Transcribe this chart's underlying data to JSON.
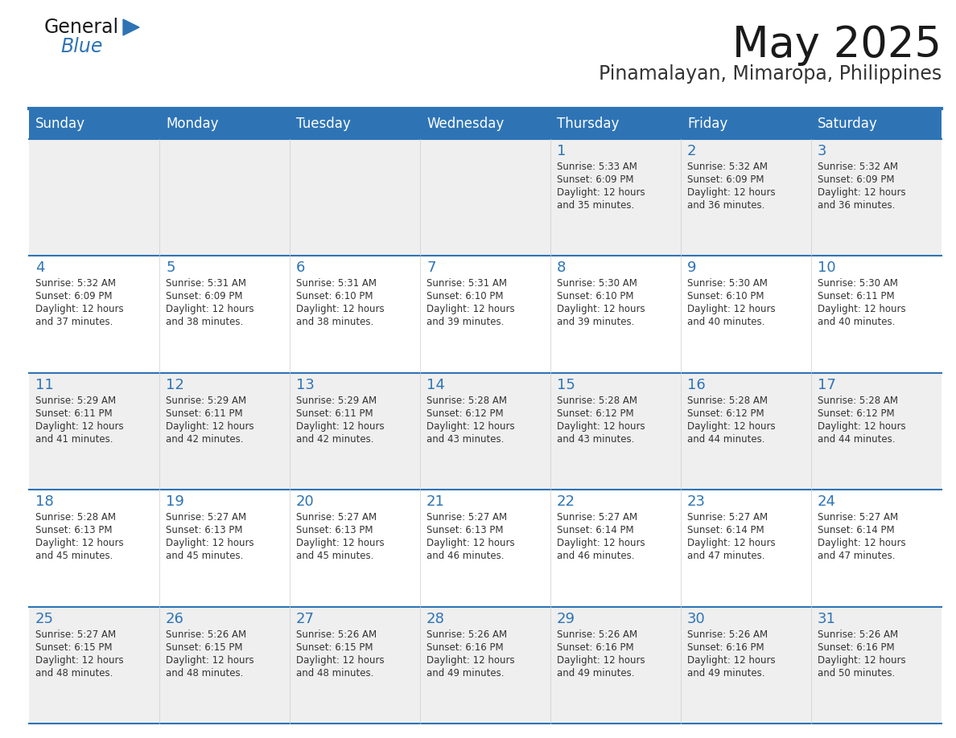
{
  "title": "May 2025",
  "subtitle": "Pinamalayan, Mimaropa, Philippines",
  "days_of_week": [
    "Sunday",
    "Monday",
    "Tuesday",
    "Wednesday",
    "Thursday",
    "Friday",
    "Saturday"
  ],
  "header_bg": "#2E74B5",
  "header_text_color": "#FFFFFF",
  "row_bg_odd": "#EFEFEF",
  "row_bg_even": "#FFFFFF",
  "day_number_color": "#2E74B5",
  "cell_text_color": "#333333",
  "title_color": "#1a1a1a",
  "subtitle_color": "#333333",
  "logo_general_color": "#1a1a1a",
  "logo_blue_color": "#2E74B5",
  "week_separator_color": "#2E74B5",
  "calendar_data": [
    [
      null,
      null,
      null,
      null,
      {
        "day": 1,
        "sunrise": "5:33 AM",
        "sunset": "6:09 PM",
        "daylight_hours": 12,
        "daylight_minutes": 35
      },
      {
        "day": 2,
        "sunrise": "5:32 AM",
        "sunset": "6:09 PM",
        "daylight_hours": 12,
        "daylight_minutes": 36
      },
      {
        "day": 3,
        "sunrise": "5:32 AM",
        "sunset": "6:09 PM",
        "daylight_hours": 12,
        "daylight_minutes": 36
      }
    ],
    [
      {
        "day": 4,
        "sunrise": "5:32 AM",
        "sunset": "6:09 PM",
        "daylight_hours": 12,
        "daylight_minutes": 37
      },
      {
        "day": 5,
        "sunrise": "5:31 AM",
        "sunset": "6:09 PM",
        "daylight_hours": 12,
        "daylight_minutes": 38
      },
      {
        "day": 6,
        "sunrise": "5:31 AM",
        "sunset": "6:10 PM",
        "daylight_hours": 12,
        "daylight_minutes": 38
      },
      {
        "day": 7,
        "sunrise": "5:31 AM",
        "sunset": "6:10 PM",
        "daylight_hours": 12,
        "daylight_minutes": 39
      },
      {
        "day": 8,
        "sunrise": "5:30 AM",
        "sunset": "6:10 PM",
        "daylight_hours": 12,
        "daylight_minutes": 39
      },
      {
        "day": 9,
        "sunrise": "5:30 AM",
        "sunset": "6:10 PM",
        "daylight_hours": 12,
        "daylight_minutes": 40
      },
      {
        "day": 10,
        "sunrise": "5:30 AM",
        "sunset": "6:11 PM",
        "daylight_hours": 12,
        "daylight_minutes": 40
      }
    ],
    [
      {
        "day": 11,
        "sunrise": "5:29 AM",
        "sunset": "6:11 PM",
        "daylight_hours": 12,
        "daylight_minutes": 41
      },
      {
        "day": 12,
        "sunrise": "5:29 AM",
        "sunset": "6:11 PM",
        "daylight_hours": 12,
        "daylight_minutes": 42
      },
      {
        "day": 13,
        "sunrise": "5:29 AM",
        "sunset": "6:11 PM",
        "daylight_hours": 12,
        "daylight_minutes": 42
      },
      {
        "day": 14,
        "sunrise": "5:28 AM",
        "sunset": "6:12 PM",
        "daylight_hours": 12,
        "daylight_minutes": 43
      },
      {
        "day": 15,
        "sunrise": "5:28 AM",
        "sunset": "6:12 PM",
        "daylight_hours": 12,
        "daylight_minutes": 43
      },
      {
        "day": 16,
        "sunrise": "5:28 AM",
        "sunset": "6:12 PM",
        "daylight_hours": 12,
        "daylight_minutes": 44
      },
      {
        "day": 17,
        "sunrise": "5:28 AM",
        "sunset": "6:12 PM",
        "daylight_hours": 12,
        "daylight_minutes": 44
      }
    ],
    [
      {
        "day": 18,
        "sunrise": "5:28 AM",
        "sunset": "6:13 PM",
        "daylight_hours": 12,
        "daylight_minutes": 45
      },
      {
        "day": 19,
        "sunrise": "5:27 AM",
        "sunset": "6:13 PM",
        "daylight_hours": 12,
        "daylight_minutes": 45
      },
      {
        "day": 20,
        "sunrise": "5:27 AM",
        "sunset": "6:13 PM",
        "daylight_hours": 12,
        "daylight_minutes": 45
      },
      {
        "day": 21,
        "sunrise": "5:27 AM",
        "sunset": "6:13 PM",
        "daylight_hours": 12,
        "daylight_minutes": 46
      },
      {
        "day": 22,
        "sunrise": "5:27 AM",
        "sunset": "6:14 PM",
        "daylight_hours": 12,
        "daylight_minutes": 46
      },
      {
        "day": 23,
        "sunrise": "5:27 AM",
        "sunset": "6:14 PM",
        "daylight_hours": 12,
        "daylight_minutes": 47
      },
      {
        "day": 24,
        "sunrise": "5:27 AM",
        "sunset": "6:14 PM",
        "daylight_hours": 12,
        "daylight_minutes": 47
      }
    ],
    [
      {
        "day": 25,
        "sunrise": "5:27 AM",
        "sunset": "6:15 PM",
        "daylight_hours": 12,
        "daylight_minutes": 48
      },
      {
        "day": 26,
        "sunrise": "5:26 AM",
        "sunset": "6:15 PM",
        "daylight_hours": 12,
        "daylight_minutes": 48
      },
      {
        "day": 27,
        "sunrise": "5:26 AM",
        "sunset": "6:15 PM",
        "daylight_hours": 12,
        "daylight_minutes": 48
      },
      {
        "day": 28,
        "sunrise": "5:26 AM",
        "sunset": "6:16 PM",
        "daylight_hours": 12,
        "daylight_minutes": 49
      },
      {
        "day": 29,
        "sunrise": "5:26 AM",
        "sunset": "6:16 PM",
        "daylight_hours": 12,
        "daylight_minutes": 49
      },
      {
        "day": 30,
        "sunrise": "5:26 AM",
        "sunset": "6:16 PM",
        "daylight_hours": 12,
        "daylight_minutes": 49
      },
      {
        "day": 31,
        "sunrise": "5:26 AM",
        "sunset": "6:16 PM",
        "daylight_hours": 12,
        "daylight_minutes": 50
      }
    ]
  ]
}
